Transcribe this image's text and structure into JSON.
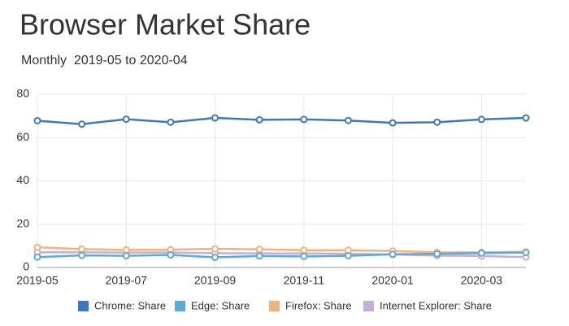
{
  "chart_data": {
    "type": "line",
    "title": "Browser Market Share",
    "subtitle": "Monthly  2019-05 to 2020-04",
    "categories": [
      "2019-05",
      null,
      "2019-07",
      null,
      "2019-09",
      null,
      "2019-11",
      null,
      "2020-01",
      null,
      "2020-03",
      null
    ],
    "series": [
      {
        "name": "Chrome: Share",
        "color": "#3f78b9",
        "values": [
          67.8,
          66.2,
          68.5,
          67.1,
          69.1,
          68.2,
          68.4,
          67.9,
          66.8,
          67.1,
          68.4,
          69.1
        ]
      },
      {
        "name": "Edge: Share",
        "color": "#5aaadc",
        "values": [
          4.8,
          5.6,
          5.4,
          5.8,
          4.7,
          5.3,
          5.1,
          5.4,
          6.1,
          6.3,
          6.6,
          6.9
        ]
      },
      {
        "name": "Firefox: Share",
        "color": "#f2b27a",
        "values": [
          9.3,
          8.5,
          8.1,
          8.2,
          8.6,
          8.4,
          8.0,
          8.0,
          7.6,
          7.0,
          7.0,
          7.2
        ]
      },
      {
        "name": "Internet Explorer: Share",
        "color": "#c3aed6",
        "values": [
          7.0,
          7.0,
          6.9,
          6.9,
          6.6,
          6.5,
          6.5,
          6.3,
          6.0,
          5.5,
          5.3,
          4.8
        ]
      }
    ],
    "ylim": [
      0,
      80
    ],
    "yticks": [
      0,
      20,
      40,
      60,
      80
    ],
    "grid": true
  }
}
